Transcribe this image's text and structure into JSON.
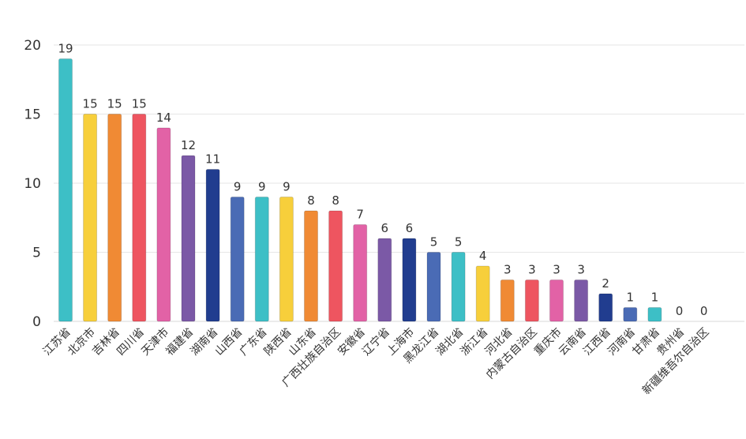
{
  "chart_data": {
    "type": "bar",
    "title": "",
    "xlabel": "",
    "ylabel": "",
    "ylim": [
      0,
      20
    ],
    "yticks": [
      0,
      5,
      10,
      15,
      20
    ],
    "grid": true,
    "categories": [
      "江苏省",
      "北京市",
      "吉林省",
      "四川省",
      "天津市",
      "福建省",
      "湖南省",
      "山西省",
      "广东省",
      "陕西省",
      "山东省",
      "广西壮族自治区",
      "安徽省",
      "辽宁省",
      "上海市",
      "黑龙江省",
      "湖北省",
      "浙江省",
      "河北省",
      "内蒙古自治区",
      "重庆市",
      "云南省",
      "江西省",
      "河南省",
      "甘肃省",
      "贵州省",
      "新疆维吾尔自治区"
    ],
    "values": [
      19,
      15,
      15,
      15,
      14,
      12,
      11,
      9,
      9,
      9,
      8,
      8,
      7,
      6,
      6,
      5,
      5,
      4,
      3,
      3,
      3,
      3,
      2,
      1,
      1,
      0,
      0
    ],
    "colors": [
      "#3dbfc6",
      "#f7cf3b",
      "#f08a34",
      "#ee5560",
      "#e262a6",
      "#7b59a6",
      "#213d8f",
      "#4a6bb5",
      "#3dbfc6",
      "#f7cf3b",
      "#f08a34",
      "#ee5560",
      "#e262a6",
      "#7b59a6",
      "#213d8f",
      "#4a6bb5",
      "#3dbfc6",
      "#f7cf3b",
      "#f08a34",
      "#ee5560",
      "#e262a6",
      "#7b59a6",
      "#213d8f",
      "#4a6bb5",
      "#3dbfc6",
      "#f7cf3b",
      "#f08a34"
    ]
  }
}
